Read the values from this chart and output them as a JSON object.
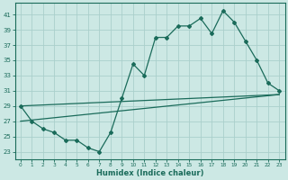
{
  "xlabel": "Humidex (Indice chaleur)",
  "bg_color": "#cce8e4",
  "grid_color": "#aacfcb",
  "line_color": "#1a6b5a",
  "xlim": [
    -0.5,
    23.5
  ],
  "ylim": [
    22,
    42.5
  ],
  "yticks": [
    23,
    25,
    27,
    29,
    31,
    33,
    35,
    37,
    39,
    41
  ],
  "xticks": [
    0,
    1,
    2,
    3,
    4,
    5,
    6,
    7,
    8,
    9,
    10,
    11,
    12,
    13,
    14,
    15,
    16,
    17,
    18,
    19,
    20,
    21,
    22,
    23
  ],
  "line1_x": [
    0,
    1,
    2,
    3,
    4,
    5,
    6,
    7,
    8,
    9,
    10,
    11,
    12,
    13,
    14,
    15,
    16,
    17,
    18,
    19,
    20,
    21,
    22,
    23
  ],
  "line1_y": [
    29,
    27,
    26,
    25.5,
    24.5,
    24.5,
    23.5,
    23,
    25.5,
    30,
    34.5,
    33,
    38,
    38,
    39.5,
    39.5,
    40.5,
    38.5,
    41.5,
    40,
    37.5,
    35,
    32,
    31
  ],
  "line2_x": [
    0,
    23
  ],
  "line2_y": [
    29,
    30.5
  ],
  "line3_x": [
    0,
    23
  ],
  "line3_y": [
    27,
    30.5
  ]
}
